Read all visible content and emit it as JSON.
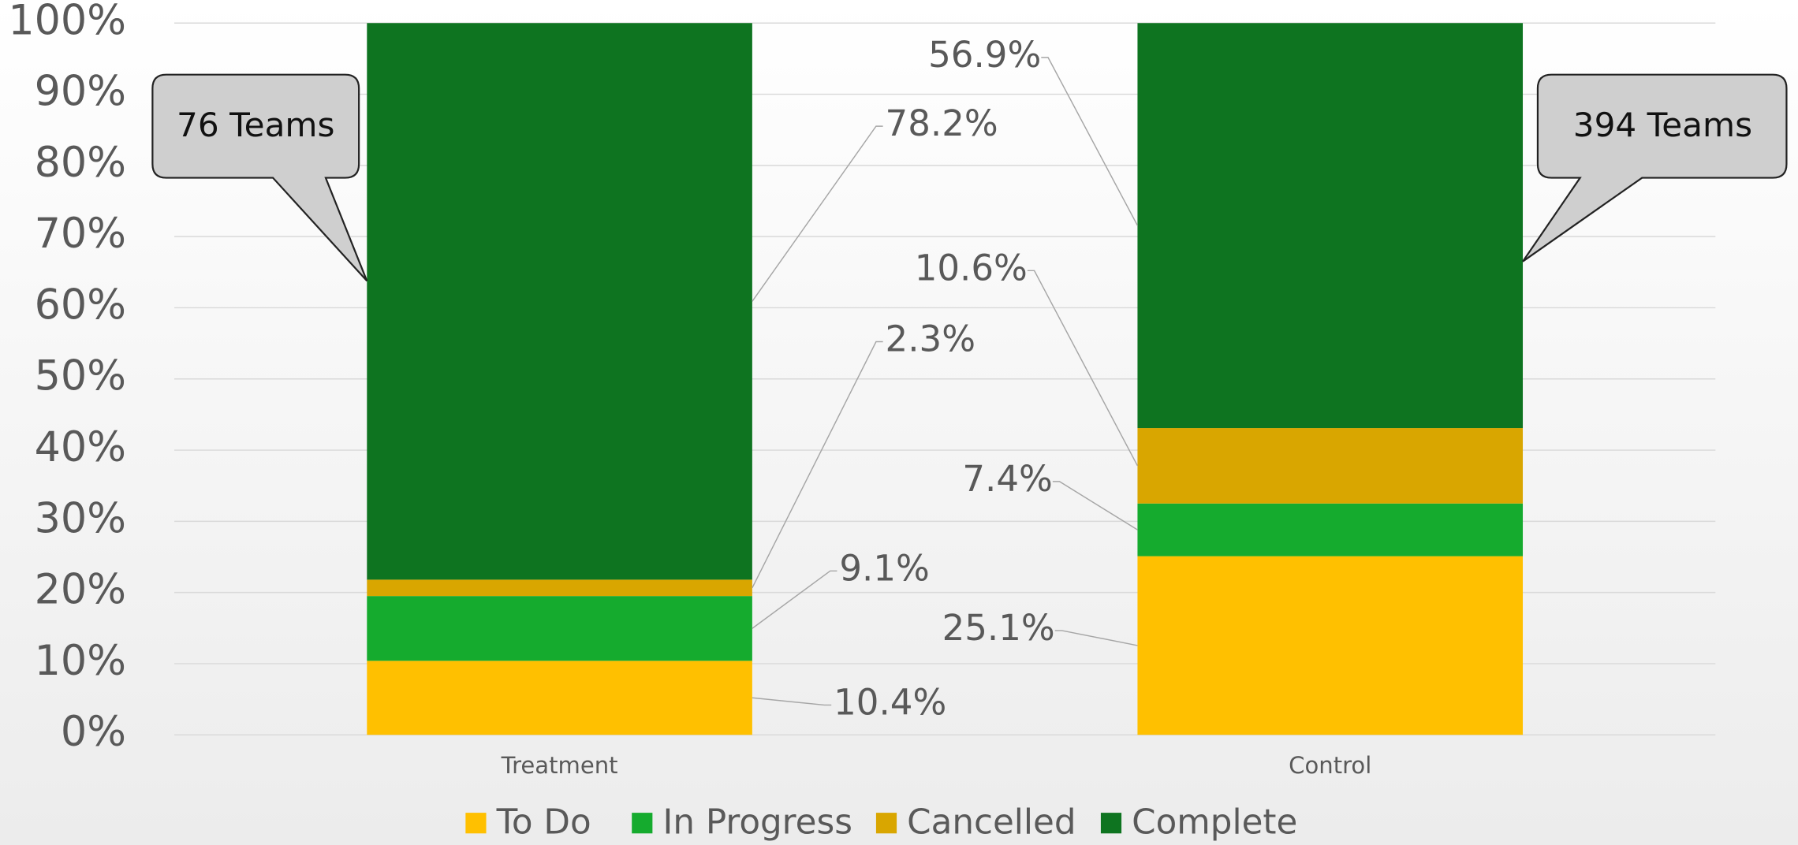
{
  "chart_data": {
    "type": "stacked_bar",
    "categories": [
      "Treatment",
      "Control"
    ],
    "series": [
      {
        "name": "To Do",
        "color": "#FFC000",
        "values": [
          10.4,
          25.1
        ],
        "value_labels": [
          "10.4%",
          "25.1%"
        ]
      },
      {
        "name": "In Progress",
        "color": "#15AB2E",
        "values": [
          9.1,
          7.4
        ],
        "value_labels": [
          "9.1%",
          "7.4%"
        ]
      },
      {
        "name": "Cancelled",
        "color": "#D9A600",
        "values": [
          2.3,
          10.6
        ],
        "value_labels": [
          "2.3%",
          "10.6%"
        ]
      },
      {
        "name": "Complete",
        "color": "#0E7420",
        "values": [
          78.2,
          56.9
        ],
        "value_labels": [
          "78.2%",
          "56.9%"
        ]
      }
    ],
    "ylim": [
      0,
      100
    ],
    "yticks": [
      {
        "value": 0,
        "label": "0%"
      },
      {
        "value": 10,
        "label": "10%"
      },
      {
        "value": 20,
        "label": "20%"
      },
      {
        "value": 30,
        "label": "30%"
      },
      {
        "value": 40,
        "label": "40%"
      },
      {
        "value": 50,
        "label": "50%"
      },
      {
        "value": 60,
        "label": "60%"
      },
      {
        "value": 70,
        "label": "70%"
      },
      {
        "value": 80,
        "label": "80%"
      },
      {
        "value": 90,
        "label": "90%"
      },
      {
        "value": 100,
        "label": "100%"
      }
    ],
    "grid": true,
    "legend": "bottom",
    "annotations": [
      "76 Teams",
      "394 Teams"
    ]
  }
}
